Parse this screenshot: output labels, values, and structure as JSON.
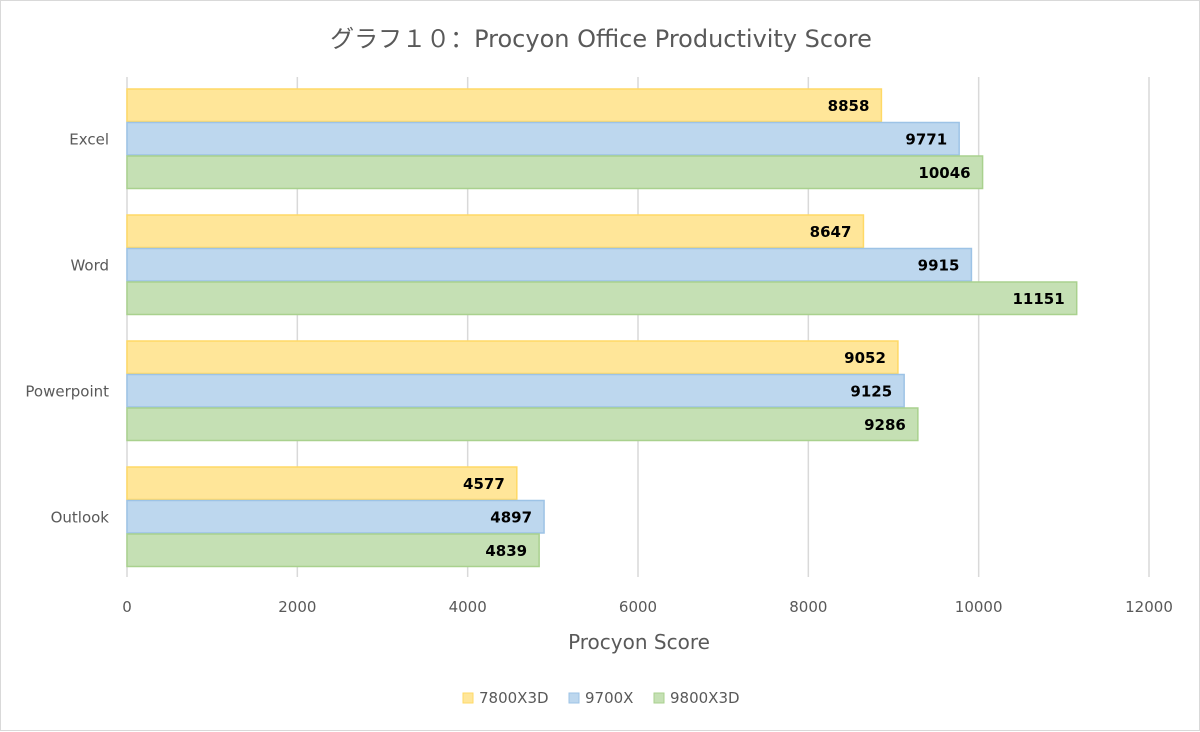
{
  "chart_data": {
    "type": "bar",
    "orientation": "horizontal",
    "title": "グラフ１０：Procyon Office Productivity Score",
    "xlabel": "Procyon Score",
    "ylabel": "",
    "xlim": [
      0,
      12000
    ],
    "x_ticks": [
      "0",
      "2000",
      "4000",
      "6000",
      "8000",
      "10000",
      "12000"
    ],
    "categories": [
      "Excel",
      "Word",
      "Powerpoint",
      "Outlook"
    ],
    "series": [
      {
        "name": "7800X3D",
        "values": [
          8858,
          8647,
          9052,
          4577
        ],
        "fill": "#ffe699",
        "stroke": "#ffd966"
      },
      {
        "name": "9700X",
        "values": [
          9771,
          9915,
          9125,
          4897
        ],
        "fill": "#bdd7ee",
        "stroke": "#9dc3e6"
      },
      {
        "name": "9800X3D",
        "values": [
          10046,
          11151,
          9286,
          4839
        ],
        "fill": "#c5e0b4",
        "stroke": "#a9d18e"
      }
    ],
    "grid": true,
    "gridline_color": "#d9d9d9",
    "legend_position": "bottom",
    "data_labels": true
  }
}
